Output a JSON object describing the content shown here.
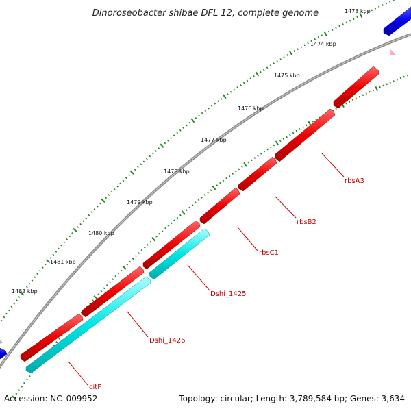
{
  "title": "Dinoroseobacter shibae DFL 12, complete genome",
  "footer": {
    "accession": "Accession: NC_009952",
    "topology": "Topology: circular; Length: 3,789,584 bp; Genes: 3,634"
  },
  "colors": {
    "backbone": "#888888",
    "ticks": "#228822",
    "forward_gene": "#ee0000",
    "reverse_gene": "#00dddd",
    "other_gene": "#0000ee",
    "label_line": "#dd0000"
  },
  "kbp_labels": [
    "1473 kbp",
    "1474 kbp",
    "1475 kbp",
    "1476 kbp",
    "1477 kbp",
    "1478 kbp",
    "1479 kbp",
    "1480 kbp",
    "1481 kbp",
    "1482 kbp"
  ],
  "gene_labels": [
    "rbsA3",
    "rbsB2",
    "rbsC1",
    "Dshi_1425",
    "Dshi_1426",
    "citF"
  ]
}
